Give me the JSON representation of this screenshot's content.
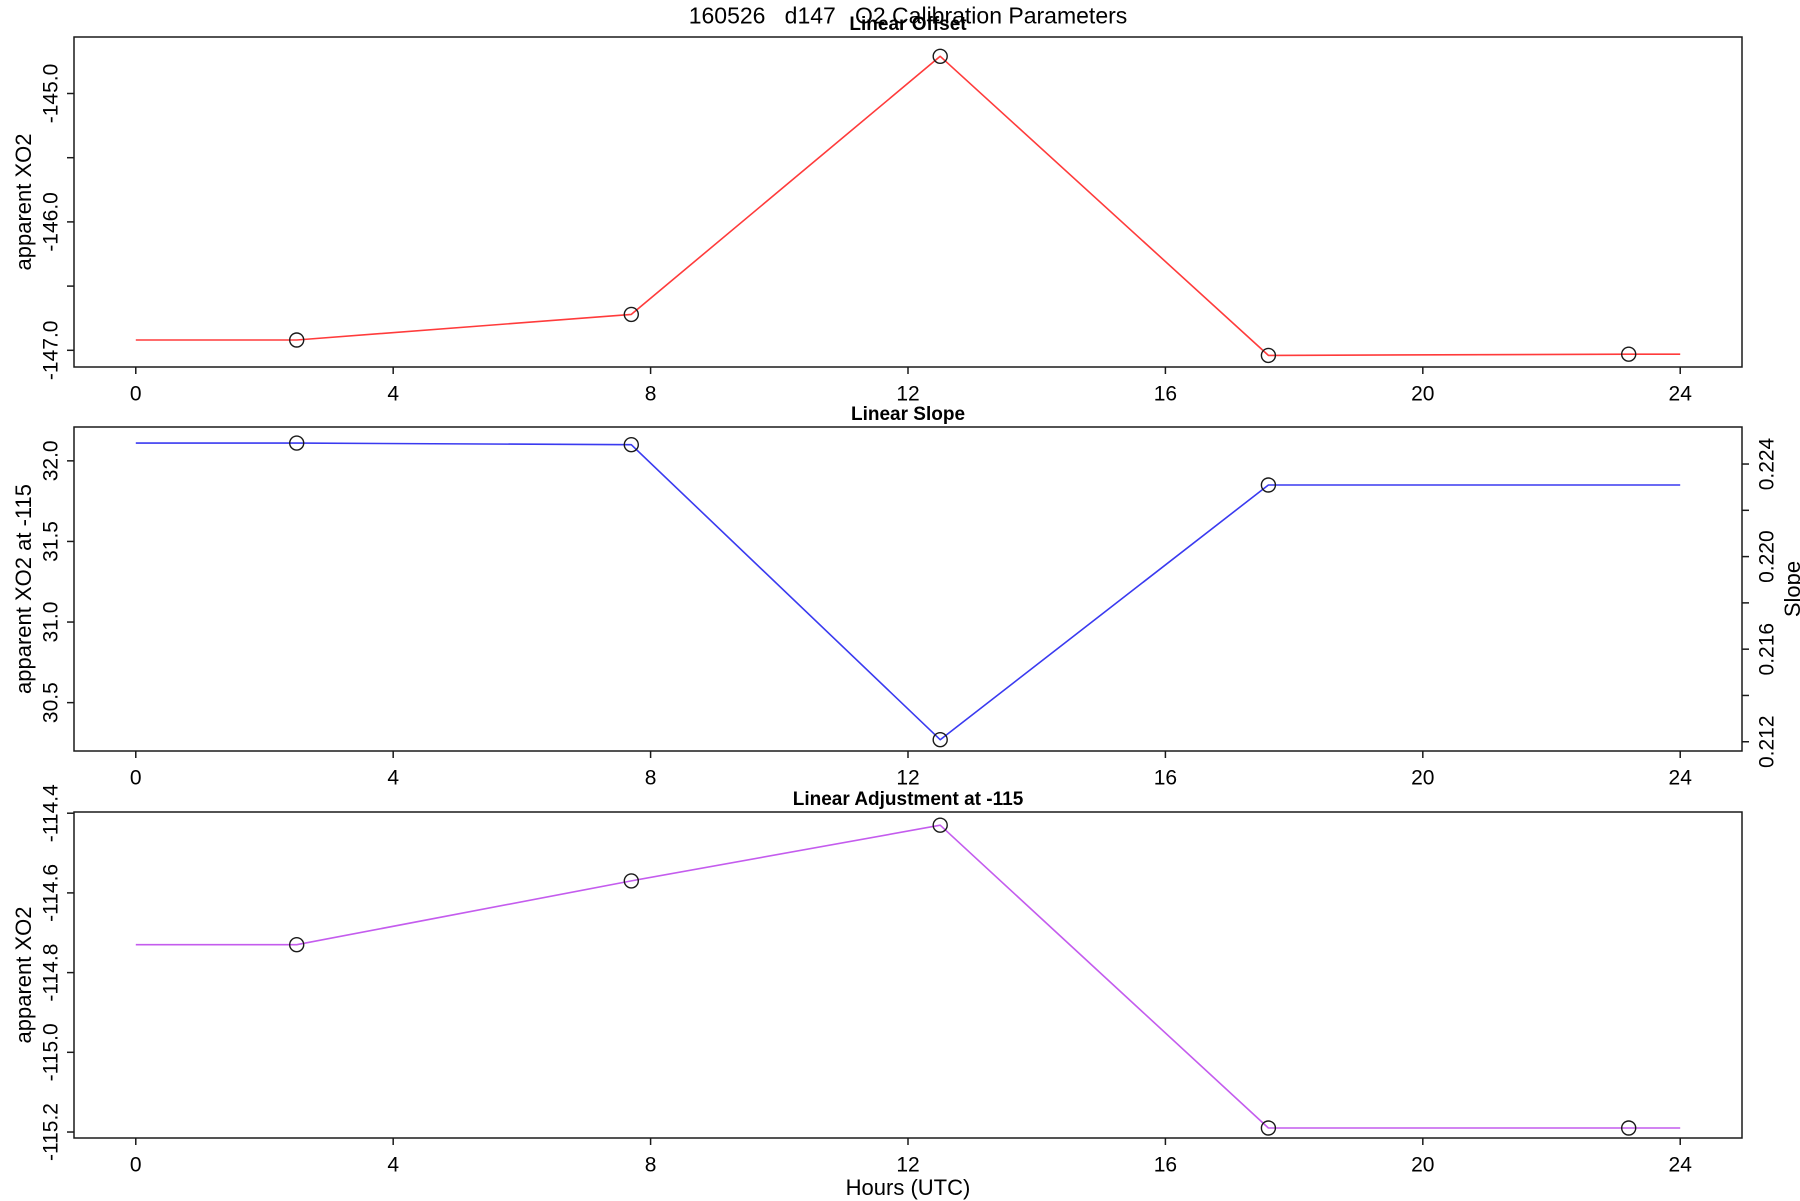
{
  "figure": {
    "title": "160526   d147   O2 Calibration Parameters",
    "xlabel": "Hours (UTC)",
    "background": "#ffffff",
    "axis_color": "#1a1a1a",
    "marker_color": "#1a1a1a",
    "xlim": [
      -0.96,
      24.96
    ],
    "x_ticks": [
      0,
      4,
      8,
      12,
      16,
      20,
      24
    ],
    "x_tick_labels": [
      "0",
      "4",
      "8",
      "12",
      "16",
      "20",
      "24"
    ]
  },
  "chart_data": [
    {
      "type": "line",
      "title": "Linear Offset",
      "ylabel": "apparent XO2",
      "line_color": "#ff3b3b",
      "x": [
        0,
        2.5,
        7.7,
        12.5,
        17.6,
        23.2,
        24
      ],
      "y": [
        -146.92,
        -146.92,
        -146.72,
        -144.71,
        -147.04,
        -147.03,
        -147.03
      ],
      "markers": {
        "x": [
          2.5,
          7.7,
          12.5,
          17.6,
          23.2
        ],
        "y": [
          -146.92,
          -146.72,
          -144.71,
          -147.04,
          -147.03
        ]
      },
      "ylim": [
        -147.13,
        -144.56
      ],
      "y_ticks": [
        -145.0,
        -146.0,
        -147.0
      ],
      "y_tick_labels": [
        "-145.0",
        "-146.0",
        "-147.0"
      ],
      "y_minor_ticks": [
        -145.5,
        -146.5
      ]
    },
    {
      "type": "line",
      "title": "Linear Slope",
      "ylabel": "apparent XO2 at -115",
      "ylabel_right": "Slope",
      "line_color": "#3a3af0",
      "x": [
        0,
        2.5,
        7.7,
        12.5,
        17.6,
        24
      ],
      "y": [
        32.11,
        32.11,
        32.1,
        30.27,
        31.85,
        31.85
      ],
      "markers": {
        "x": [
          2.5,
          7.7,
          12.5,
          17.6
        ],
        "y": [
          32.11,
          32.1,
          30.27,
          31.85
        ]
      },
      "ylim": [
        30.2,
        32.21
      ],
      "y_ticks": [
        32.0,
        31.5,
        31.0,
        30.5
      ],
      "y_tick_labels": [
        "32.0",
        "31.5",
        "31.0",
        "30.5"
      ],
      "y_minor_ticks": [],
      "right_axis": {
        "ylim": [
          0.2116,
          0.2256
        ],
        "ticks": [
          0.224,
          0.22,
          0.216,
          0.212
        ],
        "tick_labels": [
          "0.224",
          "0.220",
          "0.216",
          "0.212"
        ],
        "minor_ticks": [
          0.222,
          0.218,
          0.214
        ]
      }
    },
    {
      "type": "line",
      "title": "Linear Adjustment at -115",
      "ylabel": "apparent XO2",
      "line_color": "#c45cee",
      "x": [
        0,
        2.5,
        7.7,
        12.5,
        17.6,
        23.2,
        24
      ],
      "y": [
        -114.73,
        -114.73,
        -114.57,
        -114.43,
        -115.19,
        -115.19,
        -115.19
      ],
      "markers": {
        "x": [
          2.5,
          7.7,
          12.5,
          17.6,
          23.2
        ],
        "y": [
          -114.73,
          -114.57,
          -114.43,
          -115.19,
          -115.19
        ]
      },
      "ylim": [
        -115.215,
        -114.397
      ],
      "y_ticks": [
        -114.4,
        -114.6,
        -114.8,
        -115.0,
        -115.2
      ],
      "y_tick_labels": [
        "-114.4",
        "-114.6",
        "-114.8",
        "-115.0",
        "-115.2"
      ],
      "y_minor_ticks": []
    }
  ]
}
